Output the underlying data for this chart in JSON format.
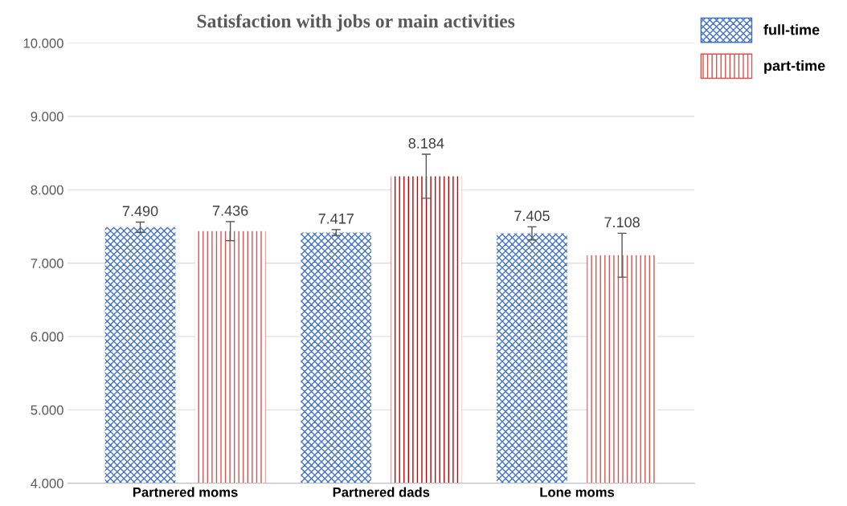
{
  "chart_data": {
    "type": "bar",
    "title": "Satisfaction with jobs or main activities",
    "categories": [
      "Partnered moms",
      "Partnered dads",
      "Lone moms"
    ],
    "series": [
      {
        "name": "full-time",
        "color": "#4472c4",
        "colors": [
          "#4472c4",
          "#4472c4",
          "#4472c4"
        ],
        "values": [
          7.49,
          7.417,
          7.405
        ],
        "value_labels": [
          "7.490",
          "7.417",
          "7.405"
        ],
        "errors": [
          0.07,
          0.04,
          0.09
        ]
      },
      {
        "name": "part-time",
        "color": "#d9534f",
        "colors": [
          "#d9534f",
          "#c00000",
          "#d9534f"
        ],
        "values": [
          7.436,
          8.184,
          7.108
        ],
        "value_labels": [
          "7.436",
          "8.184",
          "7.108"
        ],
        "errors": [
          0.13,
          0.3,
          0.3
        ]
      }
    ],
    "ylim": [
      4,
      10
    ],
    "yticks": [
      {
        "value": 4,
        "label": "4.000"
      },
      {
        "value": 5,
        "label": "5.000"
      },
      {
        "value": 6,
        "label": "6.000"
      },
      {
        "value": 7,
        "label": "7.000"
      },
      {
        "value": 8,
        "label": "8.000"
      },
      {
        "value": 9,
        "label": "9.000"
      },
      {
        "value": 10,
        "label": "10.000"
      }
    ],
    "grid": "y",
    "legend": "top right"
  }
}
